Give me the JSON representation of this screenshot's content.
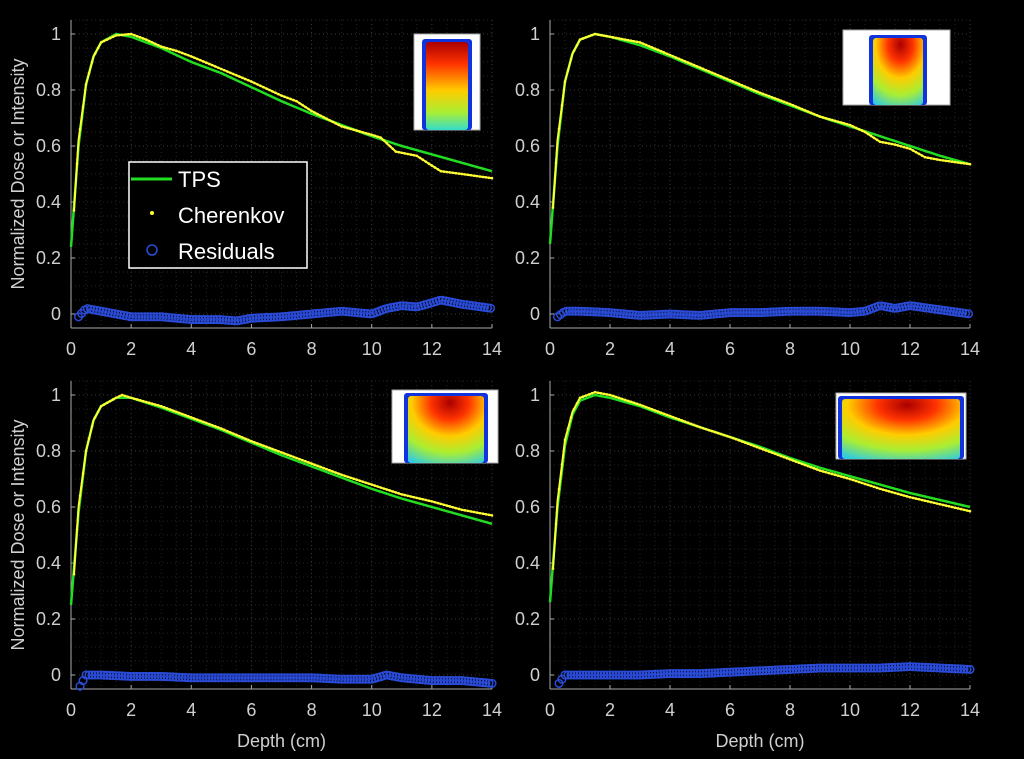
{
  "chart_data": [
    {
      "type": "line",
      "xlabel": "",
      "ylabel": "Normalized Dose or Intensity",
      "xlim": [
        0,
        14
      ],
      "ylim": [
        -0.05,
        1.05
      ],
      "xticks": [
        0,
        2,
        4,
        6,
        8,
        10,
        12,
        14
      ],
      "yticks": [
        0,
        0.2,
        0.4,
        0.6,
        0.8,
        1
      ],
      "grid": true,
      "legend": {
        "placement": "center-left",
        "entries": [
          "TPS",
          "Cherenkov",
          "Residuals"
        ]
      },
      "inset": "tall-narrow-field",
      "series": [
        {
          "name": "TPS",
          "color": "#22dd22",
          "x": [
            0,
            0.25,
            0.5,
            0.75,
            1,
            1.5,
            2,
            3,
            4,
            5,
            6,
            7,
            8,
            9,
            10,
            11,
            12,
            13,
            14
          ],
          "y": [
            0.24,
            0.6,
            0.82,
            0.92,
            0.97,
            1.0,
            0.99,
            0.95,
            0.9,
            0.86,
            0.81,
            0.76,
            0.715,
            0.675,
            0.635,
            0.6,
            0.57,
            0.54,
            0.51
          ]
        },
        {
          "name": "Cherenkov",
          "color": "#ffff33",
          "x": [
            0.1,
            0.25,
            0.5,
            0.75,
            1,
            1.5,
            2,
            2.5,
            3,
            3.5,
            4,
            5,
            6,
            7,
            7.5,
            8,
            9,
            10,
            10.3,
            10.8,
            11.5,
            12,
            12.3,
            13,
            14
          ],
          "y": [
            0.37,
            0.62,
            0.82,
            0.92,
            0.97,
            0.995,
            1.0,
            0.98,
            0.955,
            0.94,
            0.92,
            0.875,
            0.83,
            0.78,
            0.76,
            0.725,
            0.67,
            0.64,
            0.63,
            0.58,
            0.565,
            0.53,
            0.51,
            0.5,
            0.485
          ]
        },
        {
          "name": "Residuals",
          "color": "#2a4bd7",
          "x": [
            0.25,
            0.5,
            1,
            2,
            3,
            4,
            5,
            5.5,
            6,
            7,
            8,
            9,
            10,
            10.5,
            11,
            11.5,
            12,
            12.3,
            13,
            14
          ],
          "y": [
            -0.01,
            0.02,
            0.01,
            -0.01,
            -0.01,
            -0.02,
            -0.02,
            -0.025,
            -0.015,
            -0.01,
            0,
            0.01,
            0,
            0.02,
            0.03,
            0.025,
            0.04,
            0.05,
            0.035,
            0.02
          ]
        }
      ]
    },
    {
      "type": "line",
      "xlabel": "",
      "ylabel": "",
      "xlim": [
        0,
        14
      ],
      "ylim": [
        -0.05,
        1.05
      ],
      "xticks": [
        0,
        2,
        4,
        6,
        8,
        10,
        12,
        14
      ],
      "yticks": [
        0,
        0.2,
        0.4,
        0.6,
        0.8,
        1
      ],
      "grid": true,
      "inset": "medium-field",
      "series": [
        {
          "name": "TPS",
          "color": "#22dd22",
          "x": [
            0,
            0.25,
            0.5,
            0.75,
            1,
            1.5,
            2,
            3,
            4,
            5,
            6,
            7,
            8,
            9,
            10,
            11,
            12,
            13,
            14
          ],
          "y": [
            0.25,
            0.6,
            0.83,
            0.93,
            0.98,
            1.0,
            0.99,
            0.96,
            0.92,
            0.875,
            0.83,
            0.785,
            0.745,
            0.705,
            0.67,
            0.635,
            0.6,
            0.565,
            0.535
          ]
        },
        {
          "name": "Cherenkov",
          "color": "#ffff33",
          "x": [
            0.1,
            0.25,
            0.5,
            0.75,
            1,
            1.5,
            2,
            3,
            4,
            5,
            6,
            7,
            8,
            9,
            10,
            10.5,
            11,
            11.5,
            12,
            12.5,
            13,
            14
          ],
          "y": [
            0.38,
            0.62,
            0.83,
            0.93,
            0.98,
            1.0,
            0.99,
            0.97,
            0.925,
            0.88,
            0.835,
            0.79,
            0.75,
            0.705,
            0.675,
            0.65,
            0.615,
            0.605,
            0.59,
            0.56,
            0.55,
            0.535
          ]
        },
        {
          "name": "Residuals",
          "color": "#2a4bd7",
          "x": [
            0.25,
            0.5,
            1,
            2,
            3,
            4,
            5,
            6,
            7,
            8,
            9,
            10,
            10.5,
            11,
            11.5,
            12,
            13,
            14
          ],
          "y": [
            -0.01,
            0.01,
            0.01,
            0.005,
            -0.005,
            0,
            -0.005,
            0.005,
            0.005,
            0.01,
            0.01,
            0.005,
            0.01,
            0.03,
            0.02,
            0.03,
            0.015,
            0
          ]
        }
      ]
    },
    {
      "type": "line",
      "xlabel": "Depth (cm)",
      "ylabel": "Normalized Dose or Intensity",
      "xlim": [
        0,
        14
      ],
      "ylim": [
        -0.05,
        1.05
      ],
      "xticks": [
        0,
        2,
        4,
        6,
        8,
        10,
        12,
        14
      ],
      "yticks": [
        0,
        0.2,
        0.4,
        0.6,
        0.8,
        1
      ],
      "grid": true,
      "inset": "wide-field",
      "series": [
        {
          "name": "TPS",
          "color": "#22dd22",
          "x": [
            0,
            0.25,
            0.5,
            0.75,
            1,
            1.5,
            2,
            3,
            4,
            5,
            6,
            7,
            8,
            9,
            10,
            11,
            12,
            13,
            14
          ],
          "y": [
            0.25,
            0.58,
            0.8,
            0.91,
            0.96,
            0.99,
            0.99,
            0.955,
            0.915,
            0.875,
            0.83,
            0.785,
            0.745,
            0.705,
            0.665,
            0.63,
            0.6,
            0.57,
            0.54
          ]
        },
        {
          "name": "Cherenkov",
          "color": "#ffff33",
          "x": [
            0.1,
            0.25,
            0.5,
            0.75,
            1,
            1.5,
            1.7,
            2,
            3,
            4,
            5,
            6,
            7,
            8,
            9,
            10,
            11,
            12,
            13,
            14
          ],
          "y": [
            0.36,
            0.6,
            0.8,
            0.91,
            0.96,
            0.99,
            1.0,
            0.99,
            0.96,
            0.92,
            0.88,
            0.835,
            0.795,
            0.755,
            0.715,
            0.68,
            0.645,
            0.62,
            0.59,
            0.57
          ]
        },
        {
          "name": "Residuals",
          "color": "#2a4bd7",
          "x": [
            0.3,
            0.5,
            1,
            2,
            3,
            4,
            5,
            6,
            7,
            8,
            9,
            10,
            10.5,
            11,
            12,
            13,
            14
          ],
          "y": [
            -0.04,
            0.0,
            0.0,
            -0.005,
            -0.005,
            -0.01,
            -0.01,
            -0.01,
            -0.01,
            -0.01,
            -0.015,
            -0.015,
            0.0,
            -0.01,
            -0.02,
            -0.02,
            -0.03
          ]
        }
      ]
    },
    {
      "type": "line",
      "xlabel": "Depth (cm)",
      "ylabel": "",
      "xlim": [
        0,
        14
      ],
      "ylim": [
        -0.05,
        1.05
      ],
      "xticks": [
        0,
        2,
        4,
        6,
        8,
        10,
        12,
        14
      ],
      "yticks": [
        0,
        0.2,
        0.4,
        0.6,
        0.8,
        1
      ],
      "grid": true,
      "inset": "large-field",
      "series": [
        {
          "name": "TPS",
          "color": "#22dd22",
          "x": [
            0,
            0.25,
            0.5,
            0.75,
            1,
            1.5,
            2,
            3,
            4,
            5,
            6,
            7,
            8,
            9,
            10,
            11,
            12,
            13,
            14
          ],
          "y": [
            0.26,
            0.6,
            0.82,
            0.93,
            0.98,
            1.0,
            0.99,
            0.96,
            0.92,
            0.885,
            0.85,
            0.815,
            0.775,
            0.74,
            0.71,
            0.68,
            0.65,
            0.625,
            0.6
          ]
        },
        {
          "name": "Cherenkov",
          "color": "#ffff33",
          "x": [
            0.1,
            0.25,
            0.5,
            0.75,
            1,
            1.5,
            2,
            3,
            4,
            5,
            6,
            7,
            8,
            9,
            10,
            11,
            12,
            13,
            14
          ],
          "y": [
            0.38,
            0.62,
            0.84,
            0.94,
            0.99,
            1.01,
            1.0,
            0.965,
            0.925,
            0.885,
            0.85,
            0.81,
            0.77,
            0.73,
            0.7,
            0.665,
            0.635,
            0.61,
            0.585
          ]
        },
        {
          "name": "Residuals",
          "color": "#2a4bd7",
          "x": [
            0.3,
            0.5,
            1,
            2,
            3,
            4,
            5,
            6,
            7,
            8,
            9,
            10,
            11,
            12,
            13,
            14
          ],
          "y": [
            -0.03,
            0.0,
            0.0,
            0.0,
            0.0,
            0.005,
            0.005,
            0.01,
            0.015,
            0.02,
            0.025,
            0.025,
            0.025,
            0.03,
            0.025,
            0.02
          ]
        }
      ]
    }
  ]
}
